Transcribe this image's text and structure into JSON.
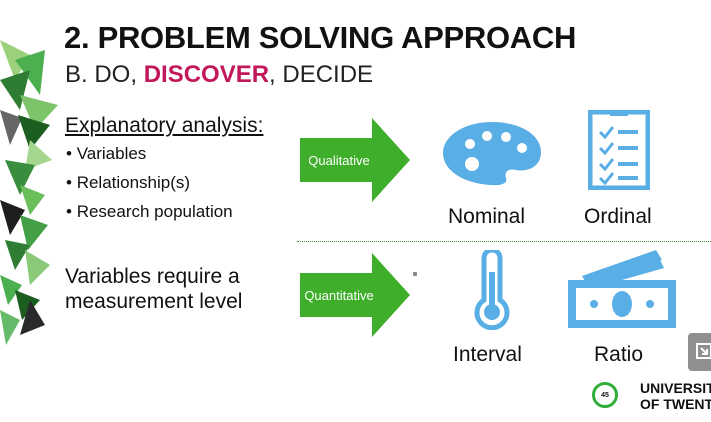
{
  "slide": {
    "title": "2. PROBLEM SOLVING APPROACH",
    "subtitle_part1": "B. DO, ",
    "subtitle_highlight": "DISCOVER",
    "subtitle_part2": ", DECIDE",
    "explanatory_heading": "Explanatory analysis:",
    "bullets": [
      "Variables",
      "Relationship(s)",
      "Research population"
    ],
    "requirement_line1": "Variables require a",
    "requirement_line2": "measurement level"
  },
  "arrows": {
    "qualitative": "Qualitative",
    "quantitative": "Quantitative",
    "color": "#3fae2a"
  },
  "levels": {
    "nominal": "Nominal",
    "ordinal": "Ordinal",
    "interval": "Interval",
    "ratio": "Ratio"
  },
  "icons": {
    "nominal": "palette-icon",
    "ordinal": "checklist-icon",
    "interval": "thermometer-icon",
    "ratio": "money-icon",
    "color": "#5aaee6"
  },
  "logo": {
    "badge": "45",
    "line1": "UNIVERSIT",
    "line2": "OF TWENT",
    "color": "#2fae3a"
  }
}
